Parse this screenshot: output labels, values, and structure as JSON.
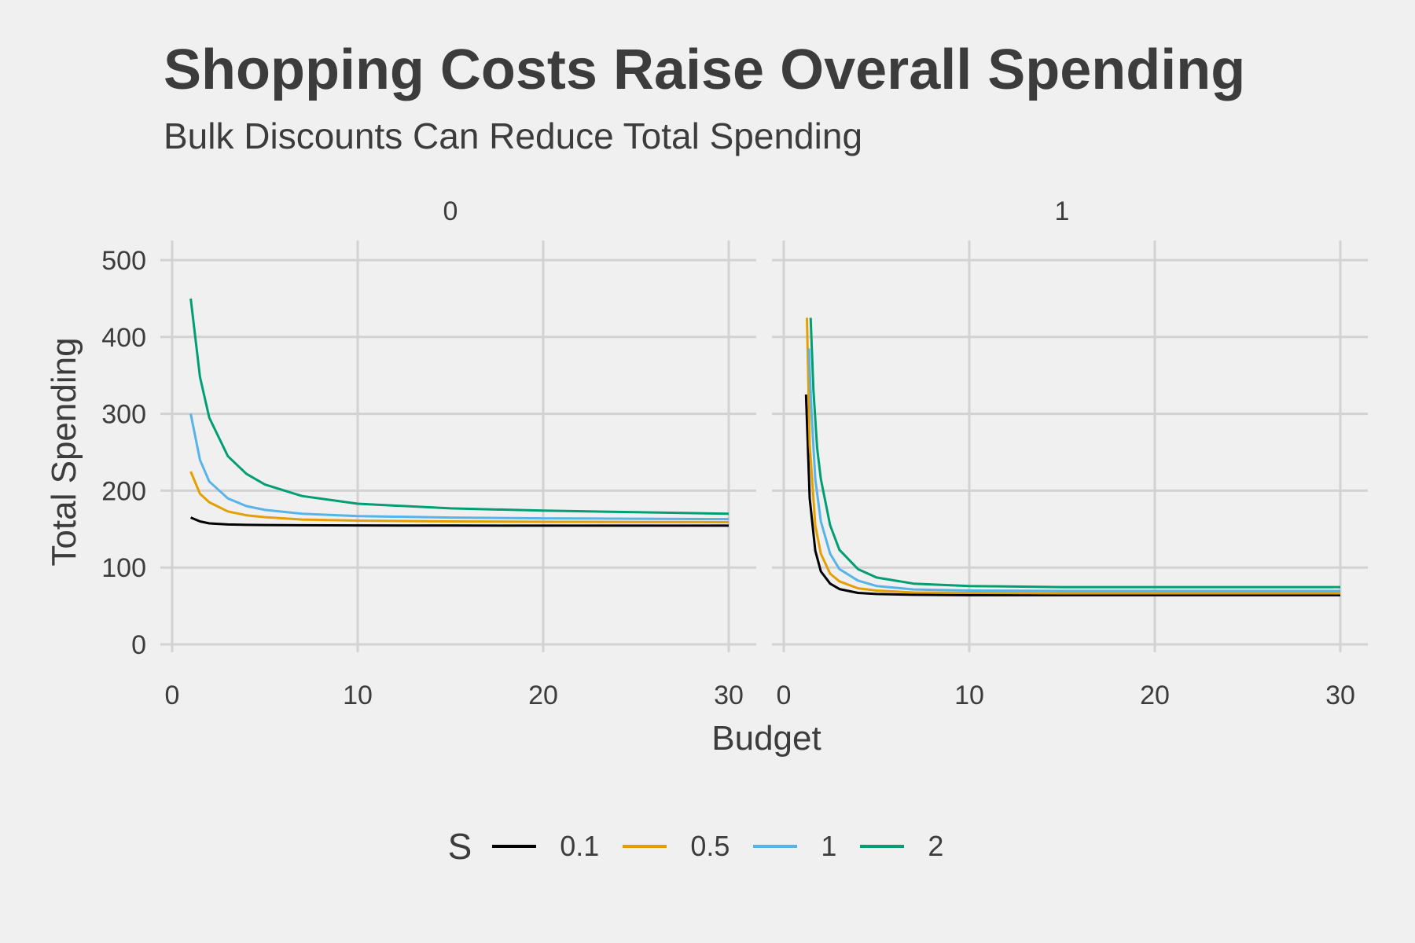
{
  "chart_data": {
    "type": "line",
    "title": "Shopping Costs Raise Overall Spending",
    "subtitle": "Bulk Discounts Can Reduce Total Spending",
    "xlabel": "Budget",
    "ylabel": "Total Spending",
    "xlim": [
      0,
      30
    ],
    "ylim": [
      0,
      500
    ],
    "xticks": [
      "0",
      "10",
      "20",
      "30"
    ],
    "yticks": [
      "0",
      "100",
      "200",
      "300",
      "400",
      "500"
    ],
    "grid": true,
    "legend_placement": "bottom",
    "legend_title": "S",
    "panels": [
      {
        "label": "0",
        "series": [
          {
            "name": "0.1",
            "color": "#000000",
            "x": [
              1,
              1.5,
              2,
              3,
              4,
              5,
              7,
              10,
              15,
              20,
              25,
              30
            ],
            "y": [
              165,
              160,
              157.5,
              156,
              155.5,
              155.3,
              155,
              154.8,
              154.6,
              154.5,
              154.5,
              154.5
            ]
          },
          {
            "name": "0.5",
            "color": "#E69F00",
            "x": [
              1,
              1.5,
              2,
              3,
              4,
              5,
              7,
              10,
              15,
              20,
              25,
              30
            ],
            "y": [
              225,
              196,
              185,
              173,
              168,
              165.5,
              162.5,
              161,
              160,
              159.5,
              159.2,
              159
            ]
          },
          {
            "name": "1",
            "color": "#56B4E9",
            "x": [
              1,
              1.5,
              2,
              3,
              4,
              5,
              7,
              10,
              15,
              20,
              25,
              30
            ],
            "y": [
              300,
              240,
              212,
              190,
              180,
              175,
              170,
              167,
              165,
              164,
              163.5,
              163
            ]
          },
          {
            "name": "2",
            "color": "#009E73",
            "x": [
              1,
              1.5,
              2,
              3,
              4,
              5,
              7,
              10,
              15,
              20,
              25,
              30
            ],
            "y": [
              450,
              348,
              295,
              245,
              222,
              208,
              193,
              183,
              177,
              174,
              172,
              170
            ]
          }
        ]
      },
      {
        "label": "1",
        "series": [
          {
            "name": "0.1",
            "color": "#000000",
            "x": [
              1.2,
              1.4,
              1.7,
              2,
              2.5,
              3,
              4,
              5,
              7,
              10,
              15,
              20,
              30
            ],
            "y": [
              325,
              190,
              122,
              95,
              79,
              72,
              67,
              65.5,
              64.5,
              64,
              64,
              64,
              64
            ]
          },
          {
            "name": "0.5",
            "color": "#E69F00",
            "x": [
              1.25,
              1.4,
              1.7,
              2,
              2.5,
              3,
              4,
              5,
              7,
              10,
              15,
              20,
              30
            ],
            "y": [
              425,
              260,
              155,
              118,
              92,
              82,
              73,
              70,
              67.5,
              67,
              66.5,
              66.5,
              66.5
            ]
          },
          {
            "name": "1",
            "color": "#56B4E9",
            "x": [
              1.35,
              1.5,
              1.7,
              2,
              2.5,
              3,
              4,
              5,
              7,
              10,
              15,
              20,
              30
            ],
            "y": [
              385,
              300,
              215,
              160,
              118,
              98,
              83,
              76,
              71.5,
              70,
              69.5,
              69.5,
              69.5
            ]
          },
          {
            "name": "2",
            "color": "#009E73",
            "x": [
              1.45,
              1.6,
              1.8,
              2,
              2.5,
              3,
              4,
              5,
              7,
              10,
              15,
              20,
              30
            ],
            "y": [
              425,
              330,
              255,
              215,
              155,
              123,
              98,
              87,
              79,
              76,
              74.5,
              74.5,
              74.5
            ]
          }
        ]
      }
    ]
  }
}
